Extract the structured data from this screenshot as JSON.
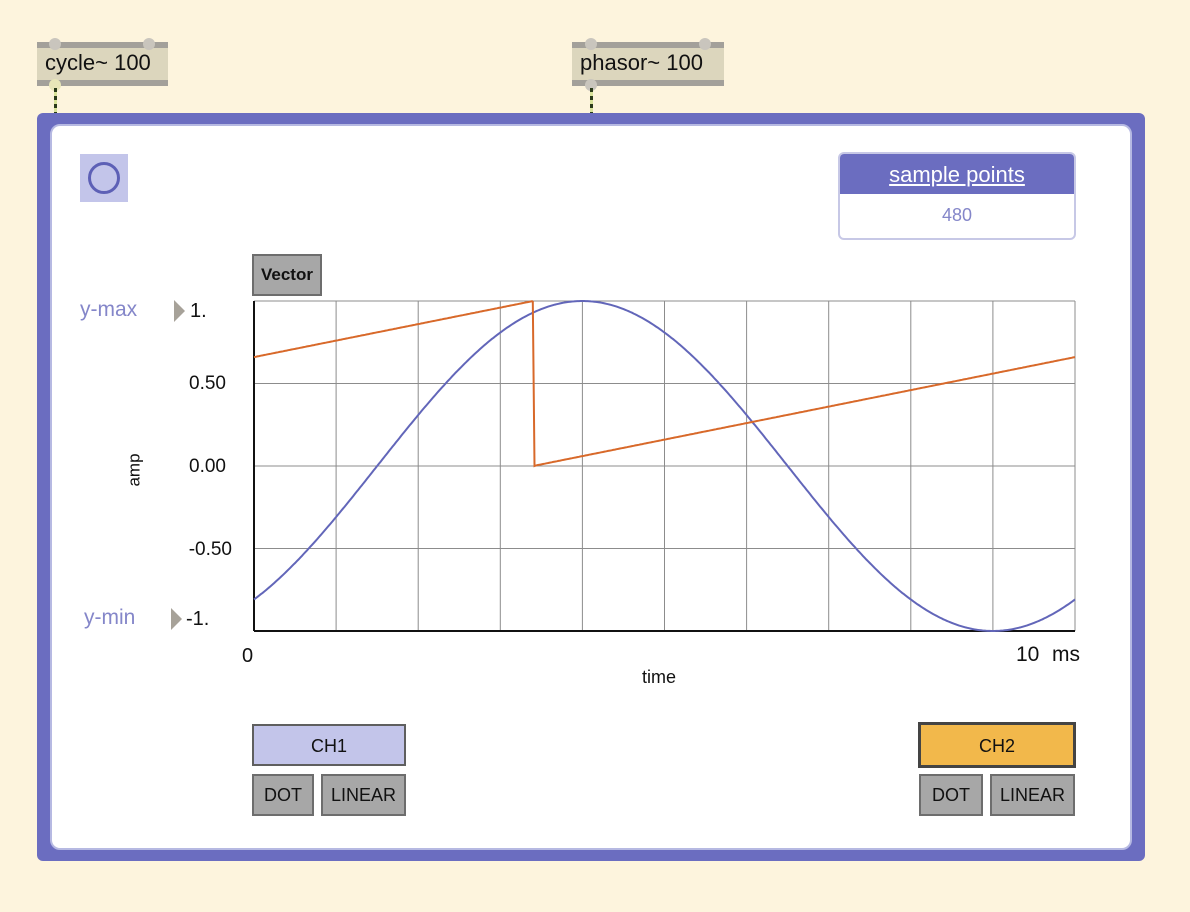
{
  "objects": {
    "cycle": {
      "label": "cycle~ 100"
    },
    "phasor": {
      "label": "phasor~ 100"
    }
  },
  "sample_points": {
    "title": "sample points",
    "value": "480"
  },
  "vector_button": {
    "label": "Vector"
  },
  "y_controls": {
    "ymax_label": "y-max",
    "ymax_value": "1.",
    "ymin_label": "y-min",
    "ymin_value": "-1."
  },
  "chart_data": {
    "type": "line",
    "xlabel": "time",
    "ylabel": "amp",
    "x_ticks": {
      "start": "0",
      "end": "10",
      "unit": "ms"
    },
    "y_ticks": [
      "0.50",
      "0.00",
      "-0.50"
    ],
    "xlim": [
      0,
      10
    ],
    "ylim": [
      -1,
      1
    ],
    "grid": true,
    "series": [
      {
        "kind": "cosine",
        "color": "#6266b9",
        "frequency_hz": 100,
        "phase_cycles": 0.1
      },
      {
        "kind": "sawtooth",
        "color": "#d8692a",
        "frequency_hz": 100,
        "phase_cycles": 0.66
      }
    ]
  },
  "channels": {
    "ch1": {
      "label": "CH1",
      "color": "#c3c5ea",
      "dot": "DOT",
      "linear": "LINEAR"
    },
    "ch2": {
      "label": "CH2",
      "color": "#f2b84b",
      "dot": "DOT",
      "linear": "LINEAR"
    }
  },
  "colors": {
    "panel": "#6b6dc0",
    "background": "#fdf4dd"
  }
}
